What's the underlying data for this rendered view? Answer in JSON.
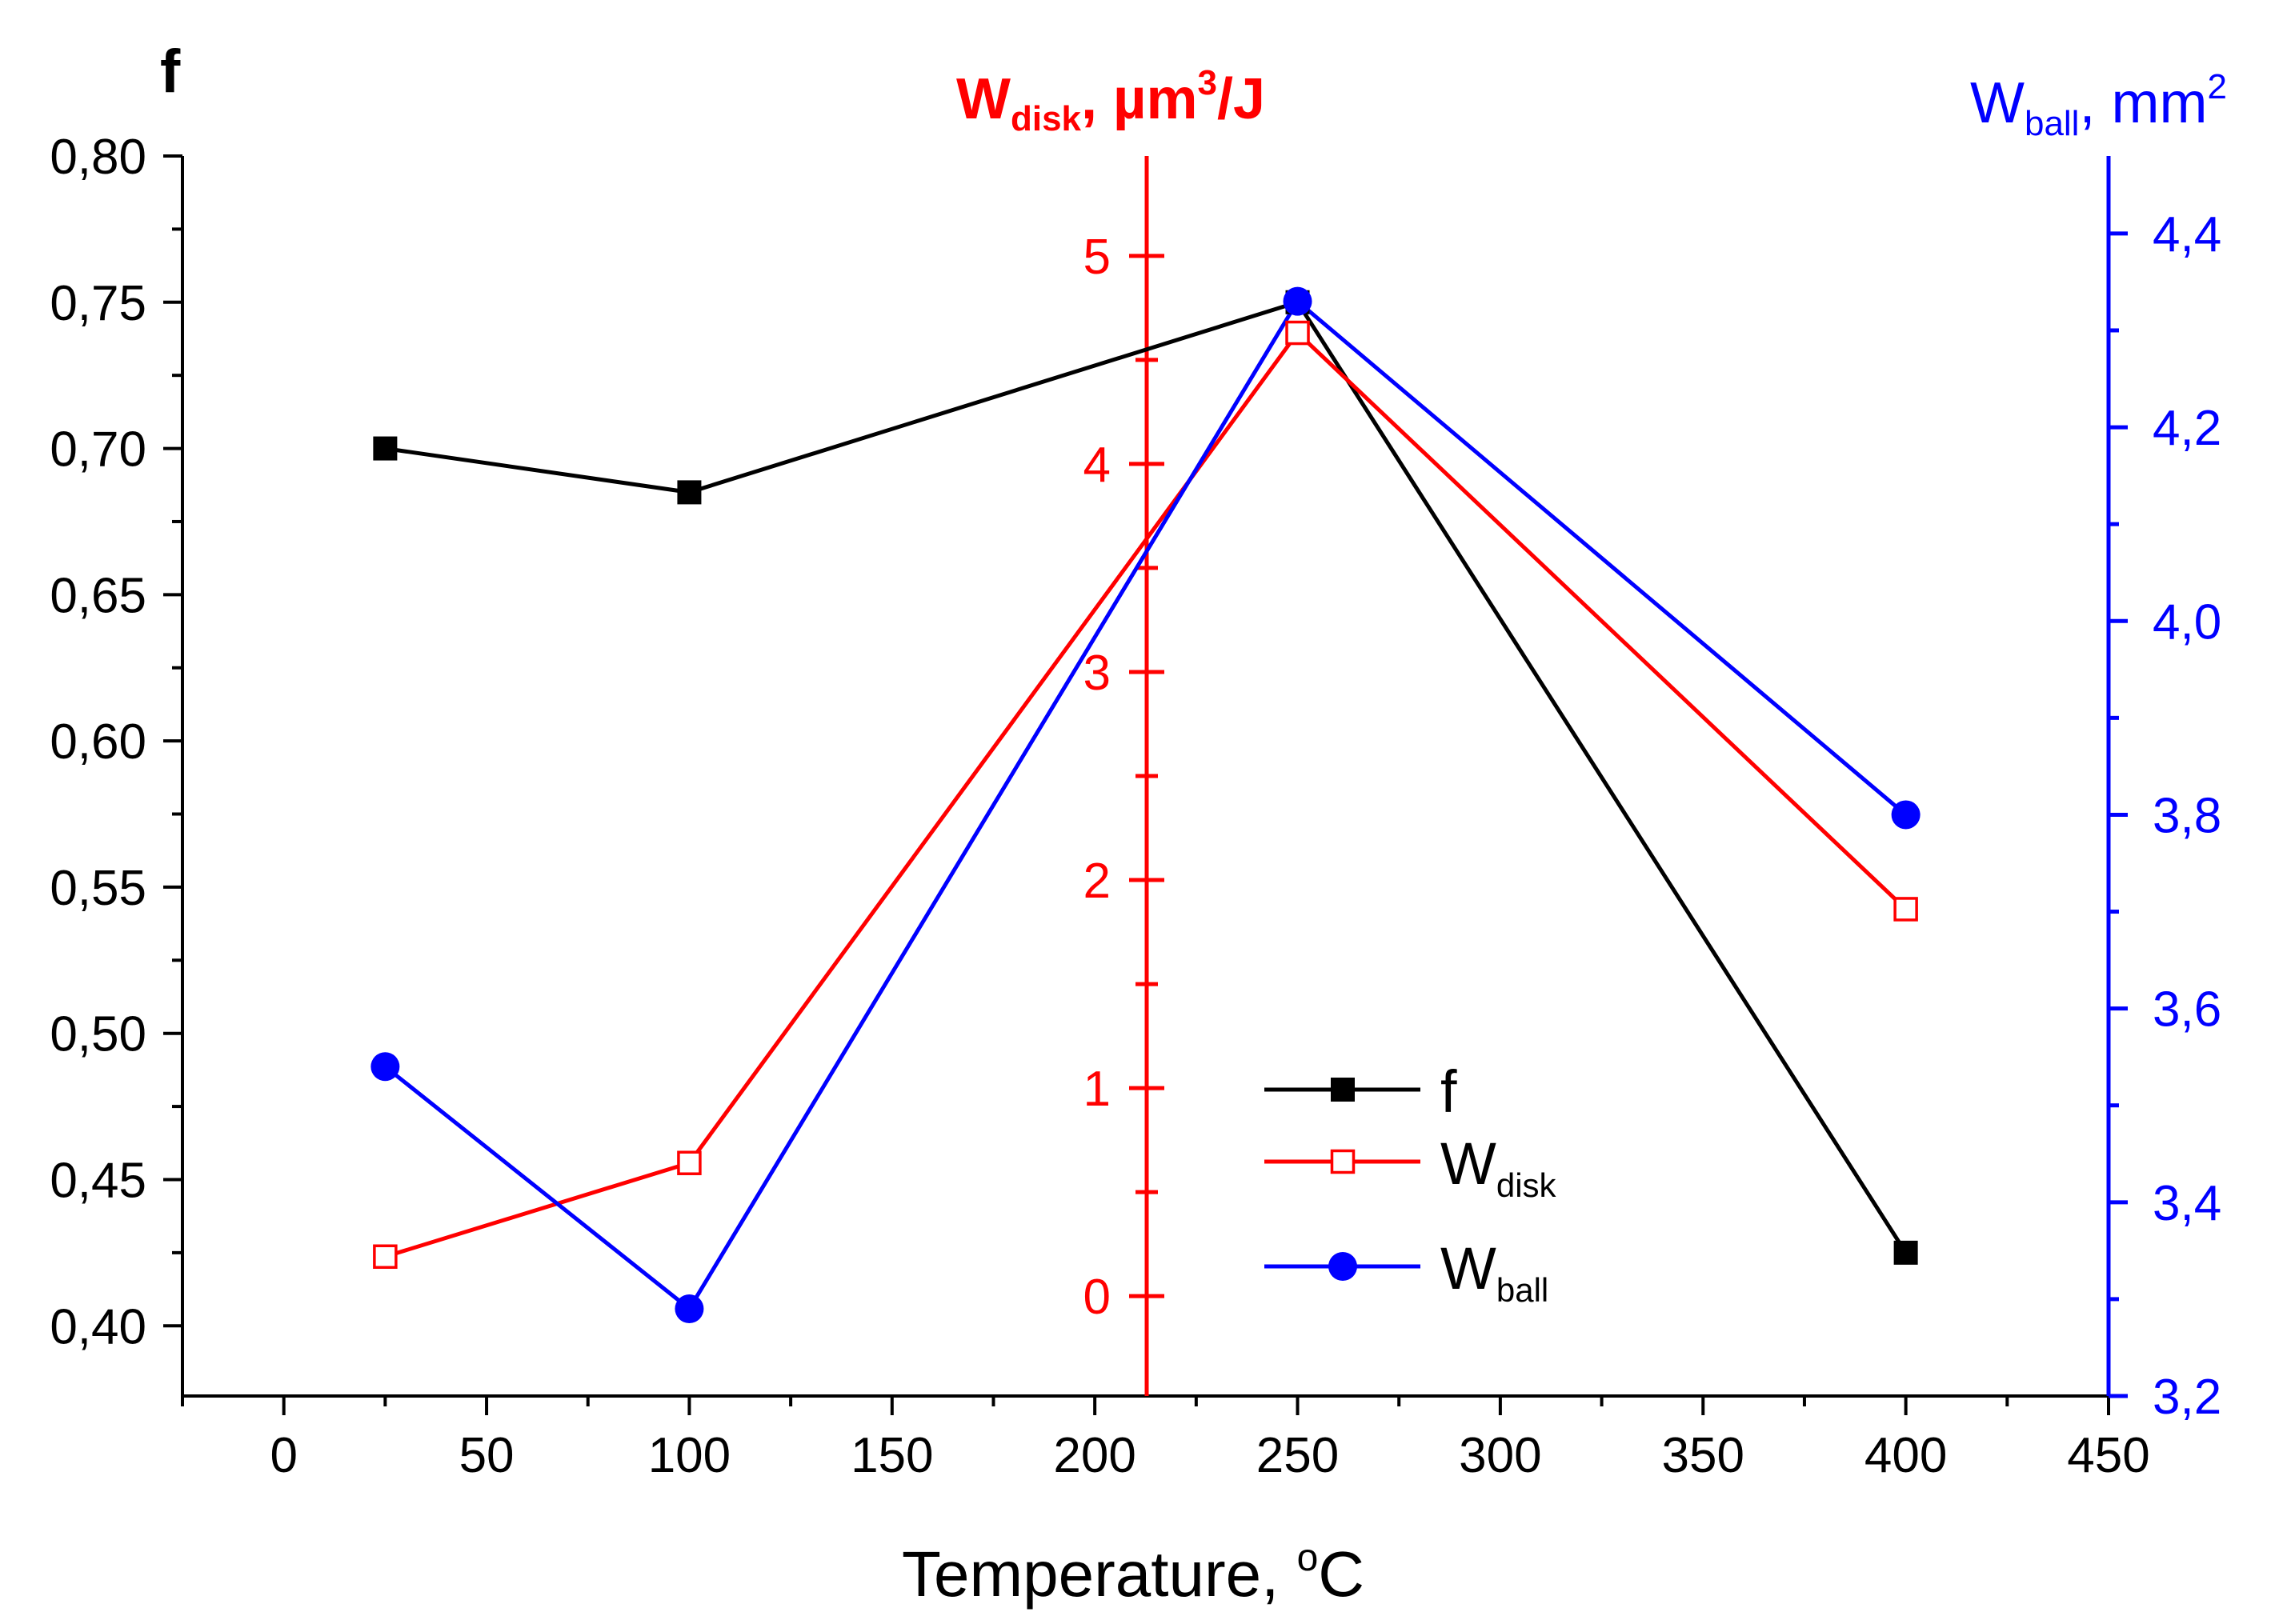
{
  "chart_data": {
    "type": "line",
    "panel_label": "f",
    "x": [
      25,
      100,
      250,
      400
    ],
    "xlim": [
      -25,
      450
    ],
    "xticks": [
      0,
      50,
      100,
      150,
      200,
      250,
      300,
      350,
      400,
      450
    ],
    "xtick_labels": [
      "0",
      "50",
      "100",
      "150",
      "200",
      "250",
      "300",
      "350",
      "400",
      "450"
    ],
    "xlabel": {
      "main": "Temperature, ",
      "sup": "o",
      "tail": "C"
    },
    "axes": {
      "left": {
        "ylim": [
          0.376,
          0.8
        ],
        "ticks": [
          0.4,
          0.45,
          0.5,
          0.55,
          0.6,
          0.65,
          0.7,
          0.75,
          0.8
        ],
        "tick_labels": [
          "0,40",
          "0,45",
          "0,50",
          "0,55",
          "0,60",
          "0,65",
          "0,70",
          "0,75",
          "0,80"
        ]
      },
      "middle": {
        "ylim": [
          -0.48,
          5.48
        ],
        "ticks": [
          0,
          1,
          2,
          3,
          4,
          5
        ],
        "tick_labels": [
          "0",
          "1",
          "2",
          "3",
          "4",
          "5"
        ],
        "label": {
          "main": "W",
          "sub": "disk",
          "mid": ", µm",
          "sup": "3",
          "tail": "/J"
        }
      },
      "right": {
        "ylim": [
          3.2,
          4.48
        ],
        "ticks": [
          3.2,
          3.4,
          3.6,
          3.8,
          4.0,
          4.2,
          4.4
        ],
        "tick_labels": [
          "3,2",
          "3,4",
          "3,6",
          "3,8",
          "4,0",
          "4,2",
          "4,4"
        ],
        "label": {
          "main": "W",
          "sub": "ball",
          "mid": ", mm",
          "sup": "2"
        }
      }
    },
    "series": [
      {
        "name": "f",
        "axis": "left",
        "values": [
          0.7,
          0.685,
          0.75,
          0.425
        ],
        "color": "#000000",
        "marker": "square-filled"
      },
      {
        "name": "W",
        "sub": "disk",
        "axis": "middle",
        "values": [
          0.19,
          0.64,
          4.63,
          1.86
        ],
        "color": "#ff0000",
        "marker": "square-open"
      },
      {
        "name": "W",
        "sub": "ball",
        "axis": "right",
        "values": [
          3.54,
          3.29,
          4.33,
          3.8
        ],
        "color": "#0000ff",
        "marker": "circle-filled"
      }
    ],
    "colors": {
      "left_axis": "#000000",
      "middle_axis": "#ff0000",
      "right_axis": "#0000ff"
    }
  }
}
